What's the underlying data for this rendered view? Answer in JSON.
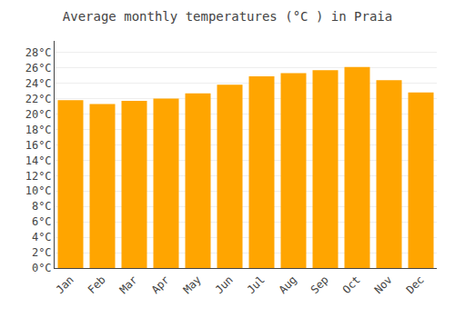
{
  "chart_data": {
    "type": "bar",
    "title": "Average monthly temperatures (°C ) in Praia",
    "categories": [
      "Jan",
      "Feb",
      "Mar",
      "Apr",
      "May",
      "Jun",
      "Jul",
      "Aug",
      "Sep",
      "Oct",
      "Nov",
      "Dec"
    ],
    "values": [
      21.8,
      21.3,
      21.7,
      22.0,
      22.7,
      23.8,
      24.9,
      25.3,
      25.7,
      26.1,
      24.4,
      22.8
    ],
    "color": "#FFA500",
    "ylim": [
      0,
      29.5
    ],
    "yticks": [
      {
        "value": 0,
        "label": "0°C"
      },
      {
        "value": 2,
        "label": "2°C"
      },
      {
        "value": 4,
        "label": "4°C"
      },
      {
        "value": 6,
        "label": "6°C"
      },
      {
        "value": 8,
        "label": "8°C"
      },
      {
        "value": 10,
        "label": "10°C"
      },
      {
        "value": 12,
        "label": "12°C"
      },
      {
        "value": 14,
        "label": "14°C"
      },
      {
        "value": 16,
        "label": "16°C"
      },
      {
        "value": 18,
        "label": "18°C"
      },
      {
        "value": 20,
        "label": "20°C"
      },
      {
        "value": 22,
        "label": "22°C"
      },
      {
        "value": 24,
        "label": "24°C"
      },
      {
        "value": 26,
        "label": "26°C"
      },
      {
        "value": 28,
        "label": "28°C"
      }
    ],
    "grid": true
  }
}
